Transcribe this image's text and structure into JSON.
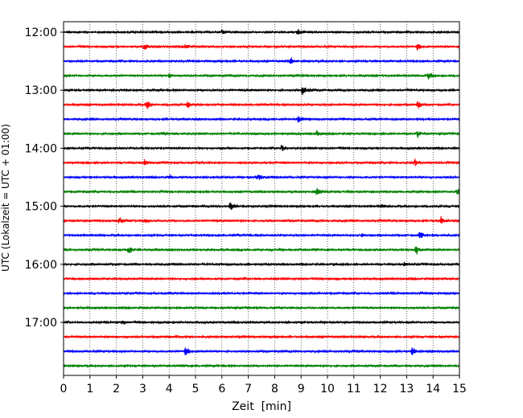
{
  "chart_data": {
    "type": "line",
    "title": "",
    "xlabel": "Zeit  [min]",
    "ylabel": "UTC (Lokalzeit = UTC + 01:00)",
    "xlim": [
      0,
      15
    ],
    "xticks": [
      0,
      1,
      2,
      3,
      4,
      5,
      6,
      7,
      8,
      9,
      10,
      11,
      12,
      13,
      14,
      15
    ],
    "x_grid": "dotted vertical at every minute",
    "row_interval_min": 15,
    "ytick_labels": [
      "12:00",
      "13:00",
      "14:00",
      "15:00",
      "16:00",
      "17:00"
    ],
    "colors": [
      "#000000",
      "#ff0000",
      "#0000ff",
      "#008000"
    ],
    "series": [
      {
        "start": "12:00",
        "color": "#000000",
        "events": [
          {
            "x": 6.0,
            "amp": 0.3
          },
          {
            "x": 8.85,
            "amp": 0.6
          }
        ]
      },
      {
        "start": "12:15",
        "color": "#ff0000",
        "events": [
          {
            "x": 3.05,
            "amp": 0.6
          },
          {
            "x": 4.6,
            "amp": 0.4
          },
          {
            "x": 13.4,
            "amp": 0.6
          }
        ]
      },
      {
        "start": "12:30",
        "color": "#0000ff",
        "events": [
          {
            "x": 8.6,
            "amp": 0.6
          }
        ]
      },
      {
        "start": "12:45",
        "color": "#008000",
        "events": [
          {
            "x": 4.0,
            "amp": 0.3
          },
          {
            "x": 13.8,
            "amp": 0.7
          }
        ]
      },
      {
        "start": "13:00",
        "color": "#000000",
        "events": [
          {
            "x": 9.05,
            "amp": 0.7
          }
        ]
      },
      {
        "start": "13:15",
        "color": "#ff0000",
        "events": [
          {
            "x": 3.15,
            "amp": 0.6
          },
          {
            "x": 4.7,
            "amp": 0.45
          },
          {
            "x": 13.4,
            "amp": 0.5
          }
        ]
      },
      {
        "start": "13:30",
        "color": "#0000ff",
        "events": [
          {
            "x": 8.9,
            "amp": 0.6
          }
        ]
      },
      {
        "start": "13:45",
        "color": "#008000",
        "events": [
          {
            "x": 3.8,
            "amp": 0.3
          },
          {
            "x": 9.6,
            "amp": 0.4
          },
          {
            "x": 13.4,
            "amp": 0.6
          }
        ]
      },
      {
        "start": "14:00",
        "color": "#000000",
        "events": [
          {
            "x": 8.25,
            "amp": 0.5
          }
        ]
      },
      {
        "start": "14:15",
        "color": "#ff0000",
        "events": [
          {
            "x": 3.05,
            "amp": 0.5
          },
          {
            "x": 13.3,
            "amp": 0.5
          }
        ]
      },
      {
        "start": "14:30",
        "color": "#0000ff",
        "events": [
          {
            "x": 4.0,
            "amp": 0.4
          },
          {
            "x": 7.35,
            "amp": 0.5
          }
        ]
      },
      {
        "start": "14:45",
        "color": "#008000",
        "events": [
          {
            "x": 9.6,
            "amp": 0.6
          },
          {
            "x": 14.9,
            "amp": 0.5
          }
        ]
      },
      {
        "start": "15:00",
        "color": "#000000",
        "events": [
          {
            "x": 6.3,
            "amp": 0.7
          },
          {
            "x": 12.05,
            "amp": 0.4
          }
        ]
      },
      {
        "start": "15:15",
        "color": "#ff0000",
        "events": [
          {
            "x": 2.1,
            "amp": 0.6
          },
          {
            "x": 3.1,
            "amp": 0.5
          },
          {
            "x": 14.3,
            "amp": 0.5
          }
        ]
      },
      {
        "start": "15:30",
        "color": "#0000ff",
        "events": [
          {
            "x": 11.3,
            "amp": 0.3
          },
          {
            "x": 13.5,
            "amp": 0.7
          }
        ]
      },
      {
        "start": "15:45",
        "color": "#008000",
        "events": [
          {
            "x": 2.45,
            "amp": 0.7
          },
          {
            "x": 13.35,
            "amp": 0.7
          }
        ]
      },
      {
        "start": "16:00",
        "color": "#000000",
        "events": [
          {
            "x": 10.2,
            "amp": 0.3
          },
          {
            "x": 12.9,
            "amp": 0.3
          }
        ]
      },
      {
        "start": "16:15",
        "color": "#ff0000",
        "events": []
      },
      {
        "start": "16:30",
        "color": "#0000ff",
        "events": []
      },
      {
        "start": "16:45",
        "color": "#008000",
        "events": [
          {
            "x": 7.3,
            "amp": 0.2
          }
        ]
      },
      {
        "start": "17:00",
        "color": "#000000",
        "events": [
          {
            "x": 2.2,
            "amp": 0.3
          }
        ]
      },
      {
        "start": "17:15",
        "color": "#ff0000",
        "events": []
      },
      {
        "start": "17:30",
        "color": "#0000ff",
        "events": [
          {
            "x": 4.6,
            "amp": 0.8
          },
          {
            "x": 13.2,
            "amp": 0.6
          }
        ]
      },
      {
        "start": "17:45",
        "color": "#008000",
        "events": [
          {
            "x": 4.5,
            "amp": 0.2
          }
        ]
      }
    ]
  }
}
